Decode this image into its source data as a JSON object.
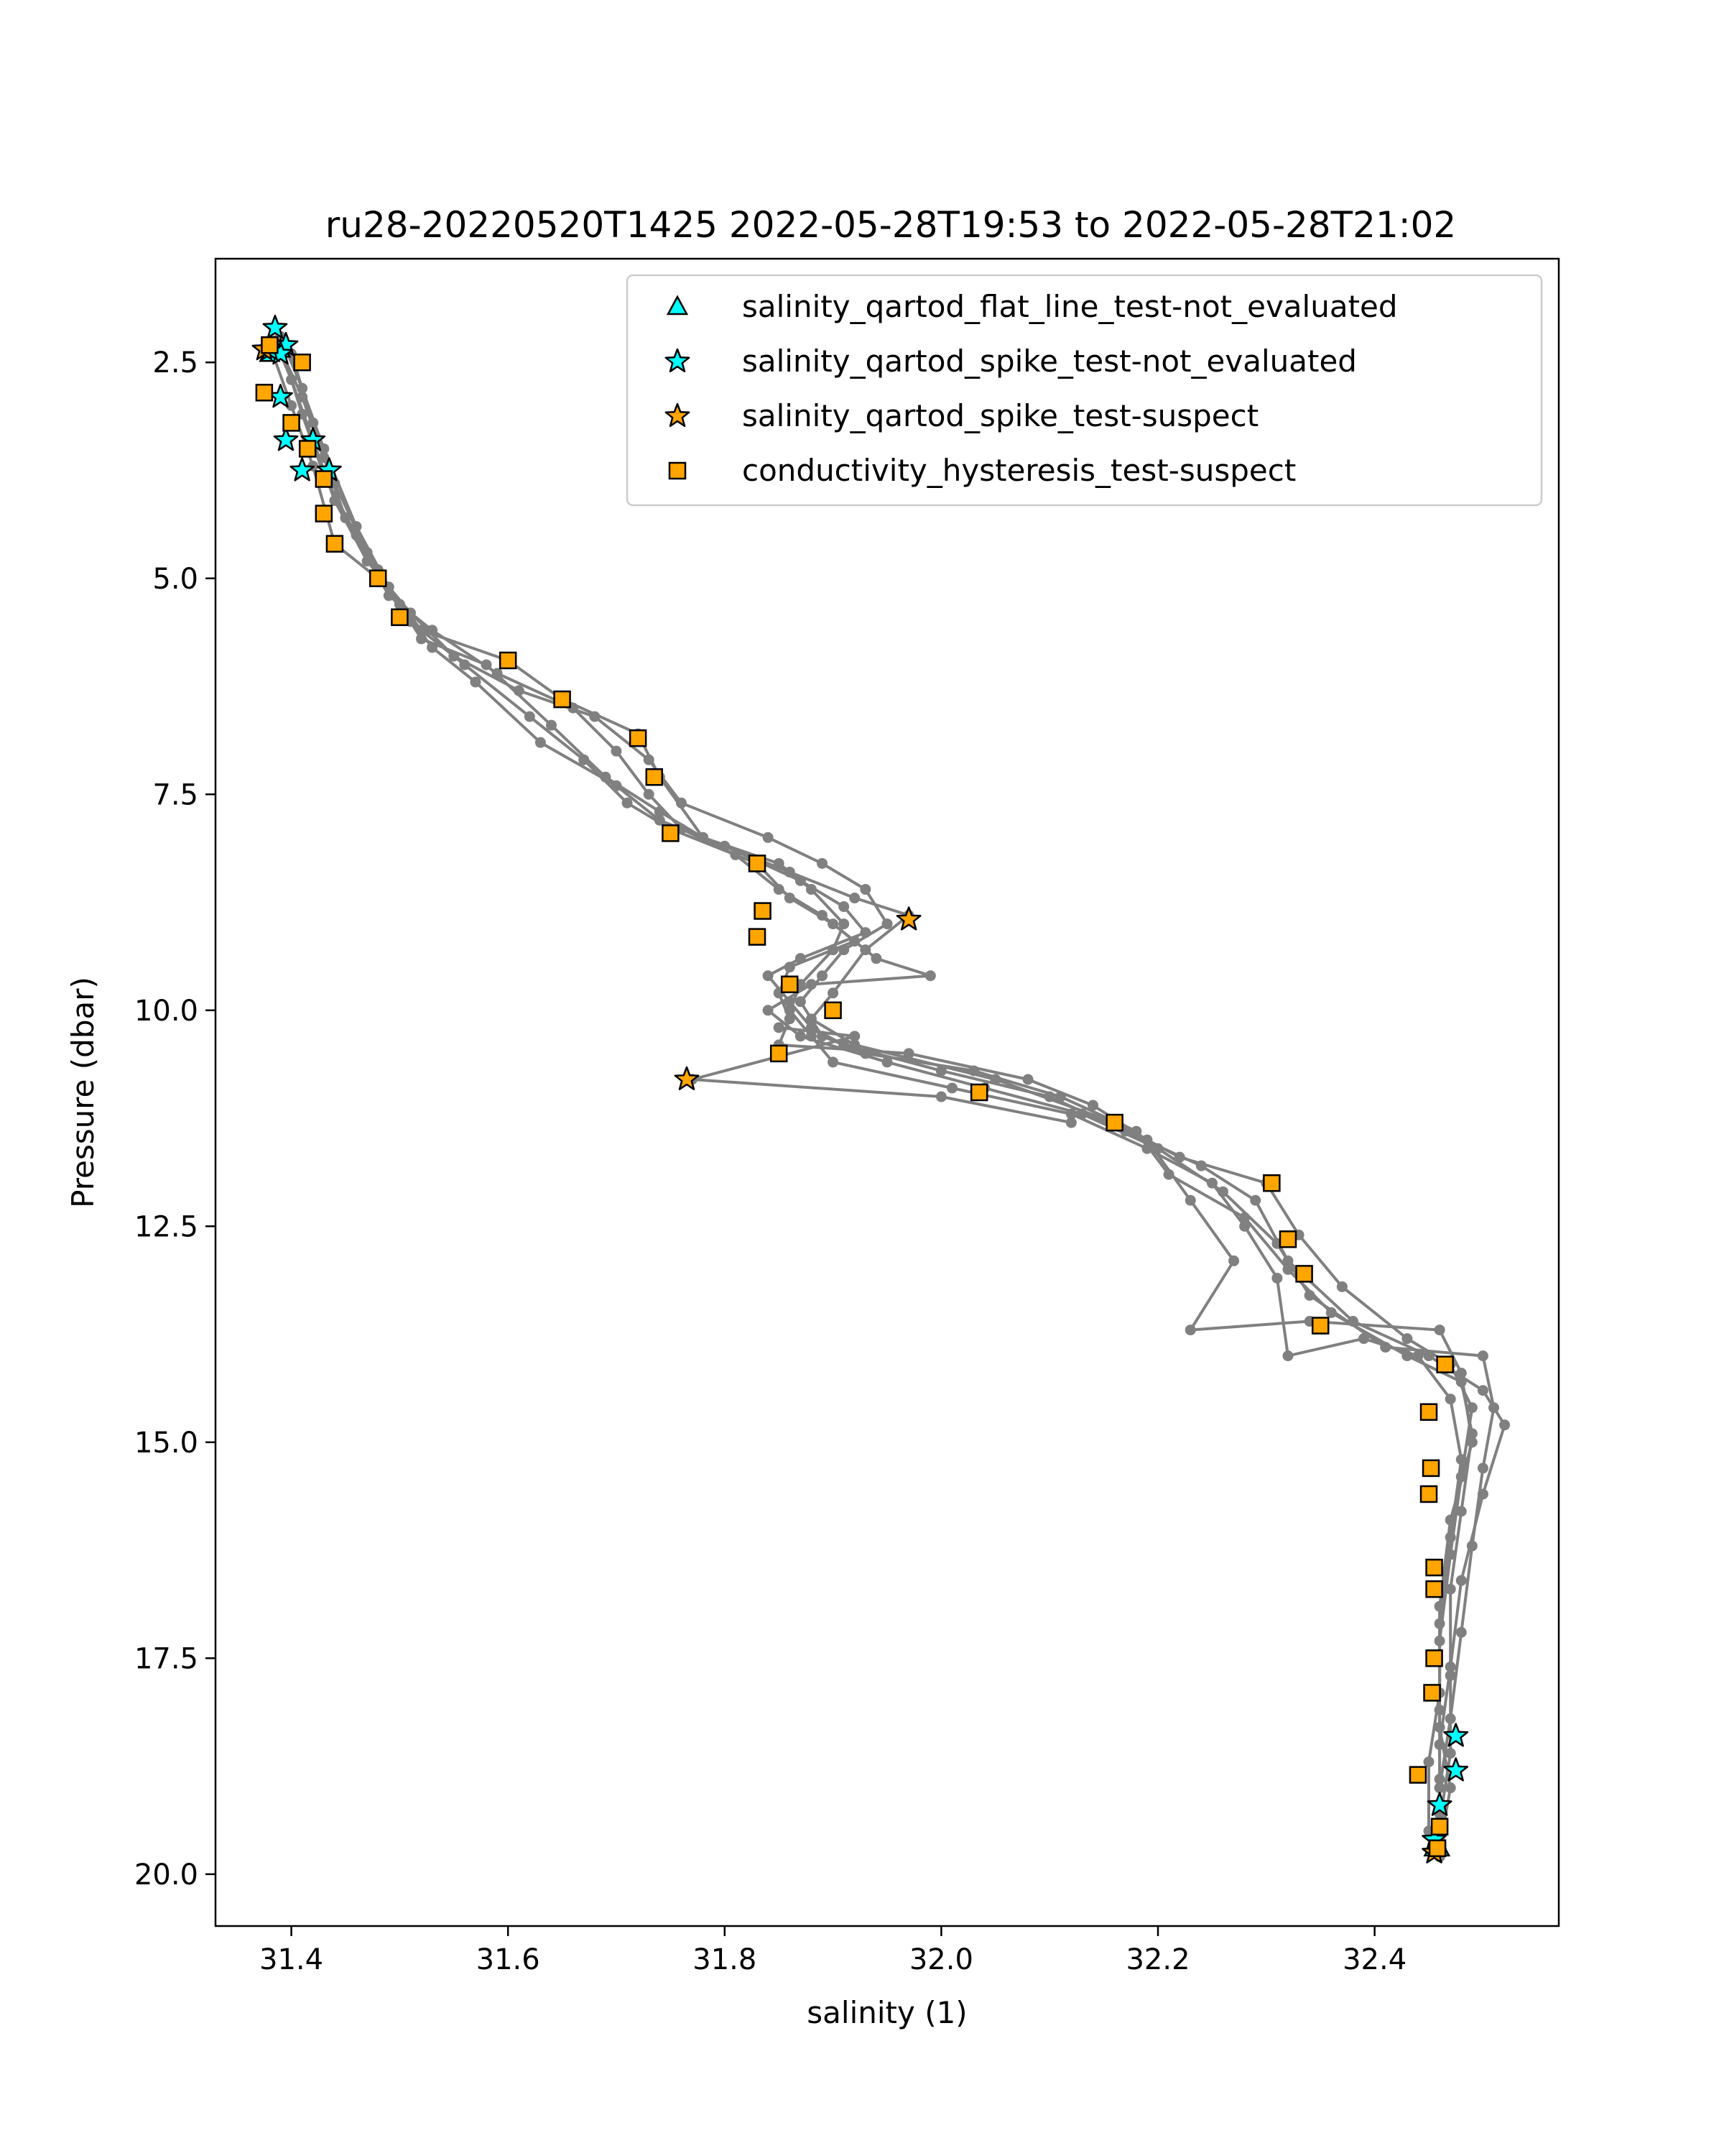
{
  "colors": {
    "line": "#808080",
    "cyan": "#00ffff",
    "orange": "#ffa500",
    "edge": "#000000",
    "background": "#ffffff"
  },
  "chart_data": {
    "type": "scatter",
    "title": "ru28-20220520T1425 2022-05-28T19:53 to 2022-05-28T21:02",
    "xlabel": "salinity (1)",
    "ylabel": "Pressure (dbar)",
    "xlim": [
      31.33,
      32.57
    ],
    "ylim": [
      20.6,
      1.3
    ],
    "y_inverted": true,
    "grid": false,
    "legend_position": "top-right",
    "x_ticks": [
      31.4,
      31.6,
      31.8,
      32.0,
      32.2,
      32.4
    ],
    "x_tick_labels": [
      "31.4",
      "31.6",
      "31.8",
      "32.0",
      "32.2",
      "32.4"
    ],
    "y_ticks": [
      2.5,
      5.0,
      7.5,
      10.0,
      12.5,
      15.0,
      17.5,
      20.0
    ],
    "y_tick_labels": [
      "2.5",
      "5.0",
      "7.5",
      "10.0",
      "12.5",
      "15.0",
      "17.5",
      "20.0"
    ],
    "legend": [
      {
        "label": "salinity_qartod_flat_line_test-not_evaluated",
        "marker": "triangle",
        "color": "#00ffff"
      },
      {
        "label": "salinity_qartod_spike_test-not_evaluated",
        "marker": "star",
        "color": "#00ffff"
      },
      {
        "label": "salinity_qartod_spike_test-suspect",
        "marker": "star",
        "color": "#ffa500"
      },
      {
        "label": "conductivity_hysteresis_test-suspect",
        "marker": "square",
        "color": "#ffa500"
      }
    ],
    "profiles": [
      [
        [
          31.39,
          2.2
        ],
        [
          31.41,
          2.8
        ],
        [
          31.43,
          3.5
        ],
        [
          31.46,
          4.4
        ],
        [
          31.49,
          5.1
        ],
        [
          31.52,
          5.6
        ],
        [
          31.6,
          5.95
        ],
        [
          31.65,
          6.4
        ],
        [
          31.72,
          6.8
        ],
        [
          31.74,
          7.3
        ],
        [
          31.78,
          8.0
        ],
        [
          31.86,
          8.4
        ],
        [
          31.92,
          8.7
        ],
        [
          31.97,
          8.9
        ],
        [
          31.93,
          9.3
        ],
        [
          31.9,
          9.8
        ],
        [
          31.88,
          10.1
        ],
        [
          31.92,
          10.4
        ],
        [
          32.05,
          10.8
        ],
        [
          32.16,
          11.3
        ],
        [
          32.22,
          11.7
        ],
        [
          32.3,
          12.0
        ],
        [
          32.33,
          12.6
        ],
        [
          32.37,
          13.2
        ],
        [
          32.43,
          13.8
        ],
        [
          32.47,
          14.1
        ],
        [
          32.49,
          14.6
        ],
        [
          32.48,
          15.4
        ],
        [
          32.47,
          16.3
        ],
        [
          32.46,
          17.3
        ],
        [
          32.46,
          18.3
        ],
        [
          32.47,
          19.0
        ],
        [
          32.46,
          19.7
        ]
      ],
      [
        [
          31.38,
          2.3
        ],
        [
          31.4,
          3.0
        ],
        [
          31.42,
          3.7
        ],
        [
          31.44,
          4.6
        ],
        [
          31.48,
          5.0
        ],
        [
          31.51,
          5.5
        ],
        [
          31.56,
          6.0
        ],
        [
          31.62,
          6.6
        ],
        [
          31.67,
          7.1
        ],
        [
          31.71,
          7.6
        ],
        [
          31.75,
          7.9
        ],
        [
          31.83,
          8.3
        ],
        [
          31.86,
          8.7
        ],
        [
          31.9,
          9.0
        ],
        [
          31.94,
          9.4
        ],
        [
          31.99,
          9.6
        ],
        [
          31.88,
          9.7
        ],
        [
          31.84,
          10.0
        ],
        [
          31.87,
          10.3
        ],
        [
          31.95,
          10.6
        ],
        [
          32.04,
          10.9
        ],
        [
          32.13,
          11.2
        ],
        [
          32.2,
          11.6
        ],
        [
          32.26,
          12.1
        ],
        [
          32.31,
          12.7
        ],
        [
          32.34,
          13.3
        ],
        [
          32.41,
          13.9
        ],
        [
          32.5,
          14.0
        ],
        [
          32.51,
          14.6
        ],
        [
          32.5,
          15.3
        ],
        [
          32.49,
          16.2
        ],
        [
          32.48,
          17.2
        ],
        [
          32.47,
          18.2
        ],
        [
          32.46,
          19.0
        ],
        [
          32.46,
          19.6
        ]
      ],
      [
        [
          31.4,
          2.4
        ],
        [
          31.42,
          3.2
        ],
        [
          31.44,
          3.9
        ],
        [
          31.47,
          4.7
        ],
        [
          31.5,
          5.3
        ],
        [
          31.53,
          5.8
        ],
        [
          31.57,
          6.2
        ],
        [
          31.63,
          6.9
        ],
        [
          31.7,
          7.4
        ],
        [
          31.74,
          7.8
        ],
        [
          31.8,
          8.1
        ],
        [
          31.87,
          8.5
        ],
        [
          31.91,
          8.8
        ],
        [
          31.93,
          9.1
        ],
        [
          31.87,
          9.4
        ],
        [
          31.84,
          9.6
        ],
        [
          31.86,
          9.9
        ],
        [
          31.88,
          10.2
        ],
        [
          31.91,
          10.4
        ],
        [
          32.0,
          10.7
        ],
        [
          32.1,
          11.0
        ],
        [
          32.17,
          11.4
        ],
        [
          32.24,
          11.8
        ],
        [
          32.29,
          12.2
        ],
        [
          32.32,
          12.9
        ],
        [
          32.38,
          13.6
        ],
        [
          32.45,
          14.0
        ],
        [
          32.5,
          14.4
        ],
        [
          32.52,
          14.8
        ],
        [
          32.5,
          15.6
        ],
        [
          32.48,
          16.6
        ],
        [
          32.47,
          17.6
        ],
        [
          32.46,
          18.5
        ],
        [
          32.46,
          19.3
        ]
      ],
      [
        [
          31.39,
          2.35
        ],
        [
          31.41,
          2.9
        ],
        [
          31.43,
          3.6
        ],
        [
          31.45,
          4.3
        ],
        [
          31.49,
          5.2
        ],
        [
          31.53,
          5.6
        ],
        [
          31.59,
          6.1
        ],
        [
          31.66,
          6.5
        ],
        [
          31.7,
          7.0
        ],
        [
          31.73,
          7.5
        ],
        [
          31.76,
          7.9
        ],
        [
          31.81,
          8.2
        ],
        [
          31.85,
          8.6
        ],
        [
          31.89,
          8.9
        ],
        [
          31.92,
          9.2
        ],
        [
          31.86,
          9.5
        ],
        [
          31.85,
          9.8
        ],
        [
          31.86,
          10.1
        ],
        [
          31.85,
          10.4
        ],
        [
          31.97,
          10.5
        ],
        [
          32.08,
          10.8
        ],
        [
          32.14,
          11.1
        ],
        [
          32.19,
          11.5
        ],
        [
          32.23,
          12.2
        ],
        [
          32.27,
          12.9
        ],
        [
          32.23,
          13.7
        ],
        [
          32.34,
          13.6
        ],
        [
          32.46,
          13.7
        ],
        [
          32.48,
          14.2
        ],
        [
          32.49,
          15.0
        ],
        [
          32.47,
          15.9
        ],
        [
          32.46,
          16.9
        ],
        [
          32.46,
          17.9
        ],
        [
          32.45,
          18.7
        ],
        [
          32.45,
          19.5
        ]
      ],
      [
        [
          31.385,
          2.25
        ],
        [
          31.4,
          2.7
        ],
        [
          31.42,
          3.4
        ],
        [
          31.44,
          4.1
        ],
        [
          31.47,
          4.8
        ],
        [
          31.51,
          5.4
        ],
        [
          31.55,
          5.9
        ],
        [
          31.61,
          6.3
        ],
        [
          31.68,
          6.6
        ],
        [
          31.73,
          7.1
        ],
        [
          31.76,
          7.6
        ],
        [
          31.84,
          8.0
        ],
        [
          31.89,
          8.3
        ],
        [
          31.93,
          8.6
        ],
        [
          31.95,
          9.0
        ],
        [
          31.91,
          9.3
        ],
        [
          31.89,
          9.6
        ],
        [
          31.87,
          9.9
        ],
        [
          31.89,
          10.3
        ],
        [
          31.93,
          10.5
        ],
        [
          32.03,
          10.7
        ],
        [
          32.11,
          11.0
        ],
        [
          32.18,
          11.4
        ],
        [
          32.21,
          11.9
        ],
        [
          32.28,
          12.4
        ],
        [
          32.32,
          13.0
        ],
        [
          32.36,
          13.5
        ],
        [
          32.43,
          14.0
        ],
        [
          32.48,
          14.3
        ],
        [
          32.49,
          14.9
        ],
        [
          32.48,
          15.8
        ],
        [
          32.47,
          16.7
        ],
        [
          32.47,
          17.7
        ],
        [
          32.47,
          18.6
        ],
        [
          32.46,
          19.4
        ]
      ],
      [
        [
          31.39,
          2.3
        ],
        [
          31.41,
          3.1
        ],
        [
          31.43,
          3.8
        ],
        [
          31.46,
          4.5
        ],
        [
          31.48,
          4.9
        ],
        [
          31.52,
          5.7
        ],
        [
          31.58,
          6.0
        ],
        [
          31.64,
          6.7
        ],
        [
          31.69,
          7.3
        ],
        [
          31.74,
          7.7
        ],
        [
          31.78,
          8.0
        ],
        [
          31.85,
          8.3
        ],
        [
          31.88,
          8.6
        ],
        [
          31.91,
          9.0
        ],
        [
          31.9,
          9.3
        ],
        [
          31.87,
          9.7
        ],
        [
          31.86,
          10.0
        ],
        [
          31.88,
          10.3
        ],
        [
          31.9,
          10.6
        ],
        [
          32.01,
          10.9
        ],
        [
          32.12,
          11.2
        ],
        [
          32.19,
          11.6
        ],
        [
          32.25,
          12.0
        ],
        [
          32.28,
          12.5
        ],
        [
          32.31,
          13.1
        ],
        [
          32.32,
          14.0
        ],
        [
          32.39,
          13.8
        ],
        [
          32.44,
          14.0
        ],
        [
          32.47,
          14.5
        ],
        [
          32.48,
          15.2
        ],
        [
          32.47,
          16.1
        ],
        [
          32.46,
          17.1
        ],
        [
          32.46,
          18.1
        ],
        [
          32.46,
          18.9
        ],
        [
          32.46,
          19.8
        ]
      ]
    ],
    "outlier_path": [
      [
        31.85,
        10.2
      ],
      [
        31.92,
        10.3
      ],
      [
        31.77,
        10.8
      ],
      [
        32.0,
        11.0
      ],
      [
        32.12,
        11.3
      ]
    ],
    "series": [
      {
        "name": "salinity_qartod_flat_line_test-not_evaluated",
        "marker": "triangle",
        "color": "#00ffff",
        "points": [
          [
            31.38,
            2.4
          ],
          [
            31.39,
            2.35
          ],
          [
            32.455,
            19.7
          ],
          [
            32.46,
            19.7
          ]
        ]
      },
      {
        "name": "salinity_qartod_spike_test-not_evaluated",
        "marker": "star",
        "color": "#00ffff",
        "points": [
          [
            31.385,
            2.1
          ],
          [
            31.395,
            2.3
          ],
          [
            31.39,
            2.4
          ],
          [
            31.38,
            2.35
          ],
          [
            31.39,
            2.9
          ],
          [
            31.42,
            3.4
          ],
          [
            31.395,
            3.4
          ],
          [
            31.41,
            3.75
          ],
          [
            31.435,
            3.75
          ],
          [
            32.475,
            18.4
          ],
          [
            32.475,
            18.8
          ],
          [
            32.46,
            19.2
          ],
          [
            32.455,
            19.6
          ]
        ]
      },
      {
        "name": "salinity_qartod_spike_test-suspect",
        "marker": "star",
        "color": "#ffa500",
        "points": [
          [
            31.97,
            8.95
          ],
          [
            31.765,
            10.8
          ],
          [
            31.375,
            2.35
          ],
          [
            32.455,
            19.75
          ]
        ]
      },
      {
        "name": "conductivity_hysteresis_test-suspect",
        "marker": "square",
        "color": "#ffa500",
        "points": [
          [
            31.38,
            2.3
          ],
          [
            31.41,
            2.5
          ],
          [
            31.375,
            2.85
          ],
          [
            31.4,
            3.2
          ],
          [
            31.415,
            3.5
          ],
          [
            31.43,
            3.85
          ],
          [
            31.43,
            4.25
          ],
          [
            31.44,
            4.6
          ],
          [
            31.48,
            5.0
          ],
          [
            31.5,
            5.45
          ],
          [
            31.6,
            5.95
          ],
          [
            31.65,
            6.4
          ],
          [
            31.72,
            6.85
          ],
          [
            31.735,
            7.3
          ],
          [
            31.75,
            7.95
          ],
          [
            31.83,
            8.3
          ],
          [
            31.835,
            8.85
          ],
          [
            31.83,
            9.15
          ],
          [
            31.86,
            9.7
          ],
          [
            31.9,
            10.0
          ],
          [
            31.85,
            10.5
          ],
          [
            32.035,
            10.95
          ],
          [
            32.16,
            11.3
          ],
          [
            32.305,
            12.0
          ],
          [
            32.32,
            12.65
          ],
          [
            32.335,
            13.05
          ],
          [
            32.35,
            13.65
          ],
          [
            32.465,
            14.1
          ],
          [
            32.45,
            14.65
          ],
          [
            32.452,
            15.3
          ],
          [
            32.45,
            15.6
          ],
          [
            32.455,
            16.45
          ],
          [
            32.455,
            16.7
          ],
          [
            32.455,
            17.5
          ],
          [
            32.453,
            17.9
          ],
          [
            32.44,
            18.85
          ],
          [
            32.46,
            19.45
          ],
          [
            32.458,
            19.7
          ]
        ]
      }
    ]
  }
}
